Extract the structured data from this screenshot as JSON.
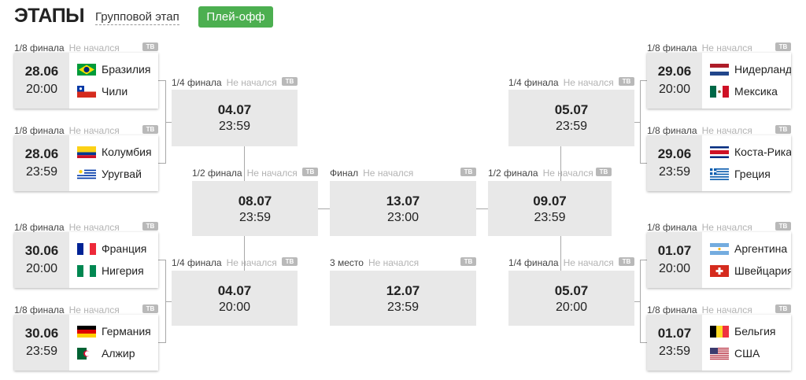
{
  "header": {
    "title": "ЭТАПЫ",
    "tab_group": "Групповой этап",
    "tab_playoff": "Плей-офф",
    "accent": "#4caf50"
  },
  "tv_label": "ТВ",
  "r16": [
    {
      "stage": "1/8 финала",
      "status": "Не начался",
      "date": "28.06",
      "time": "20:00",
      "team1": "Бразилия",
      "team2": "Чили",
      "flag1": "brazil",
      "flag2": "chile"
    },
    {
      "stage": "1/8 финала",
      "status": "Не начался",
      "date": "28.06",
      "time": "23:59",
      "team1": "Колумбия",
      "team2": "Уругвай",
      "flag1": "colombia",
      "flag2": "uruguay"
    },
    {
      "stage": "1/8 финала",
      "status": "Не начался",
      "date": "30.06",
      "time": "20:00",
      "team1": "Франция",
      "team2": "Нигерия",
      "flag1": "france",
      "flag2": "nigeria"
    },
    {
      "stage": "1/8 финала",
      "status": "Не начался",
      "date": "30.06",
      "time": "23:59",
      "team1": "Германия",
      "team2": "Алжир",
      "flag1": "germany",
      "flag2": "algeria"
    },
    {
      "stage": "1/8 финала",
      "status": "Не начался",
      "date": "29.06",
      "time": "20:00",
      "team1": "Нидерланды",
      "team2": "Мексика",
      "flag1": "netherlands",
      "flag2": "mexico"
    },
    {
      "stage": "1/8 финала",
      "status": "Не начался",
      "date": "29.06",
      "time": "23:59",
      "team1": "Коста-Рика",
      "team2": "Греция",
      "flag1": "costarica",
      "flag2": "greece"
    },
    {
      "stage": "1/8 финала",
      "status": "Не начался",
      "date": "01.07",
      "time": "20:00",
      "team1": "Аргентина",
      "team2": "Швейцария",
      "flag1": "argentina",
      "flag2": "switzerland"
    },
    {
      "stage": "1/8 финала",
      "status": "Не начался",
      "date": "01.07",
      "time": "23:59",
      "team1": "Бельгия",
      "team2": "США",
      "flag1": "belgium",
      "flag2": "usa"
    }
  ],
  "qf": [
    {
      "stage": "1/4 финала",
      "status": "Не начался",
      "date": "04.07",
      "time": "23:59"
    },
    {
      "stage": "1/4 финала",
      "status": "Не начался",
      "date": "04.07",
      "time": "20:00"
    },
    {
      "stage": "1/4 финала",
      "status": "Не начался",
      "date": "05.07",
      "time": "23:59"
    },
    {
      "stage": "1/4 финала",
      "status": "Не начался",
      "date": "05.07",
      "time": "20:00"
    }
  ],
  "sf": [
    {
      "stage": "1/2 финала",
      "status": "Не начался",
      "date": "08.07",
      "time": "23:59"
    },
    {
      "stage": "1/2 финала",
      "status": "Не начался",
      "date": "09.07",
      "time": "23:59"
    }
  ],
  "final": {
    "stage": "Финал",
    "status": "Не начался",
    "date": "13.07",
    "time": "23:00"
  },
  "third": {
    "stage": "3 место",
    "status": "Не начался",
    "date": "12.07",
    "time": "23:59"
  }
}
